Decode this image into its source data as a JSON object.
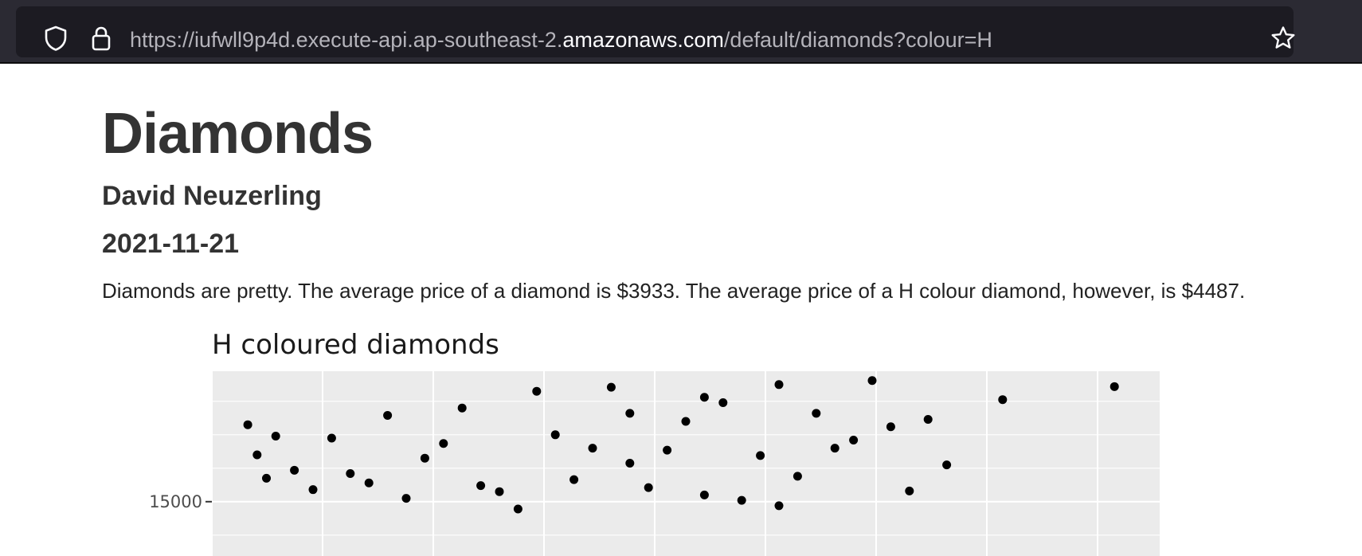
{
  "browser": {
    "url_prefix": "https://iufwll9p4d.execute-api.ap-southeast-2.",
    "url_host": "amazonaws.com",
    "url_suffix": "/default/diamonds?colour=H",
    "icons": [
      "shield-icon",
      "lock-icon",
      "star-icon"
    ]
  },
  "document": {
    "title": "Diamonds",
    "author": "David Neuzerling",
    "date": "2021-11-21",
    "paragraph": "Diamonds are pretty. The average price of a diamond is $3933. The average price of a H colour diamond, however, is $4487."
  },
  "chart_data": {
    "type": "scatter",
    "title": "H coloured diamonds",
    "xlabel": "",
    "ylabel": "",
    "y_ticks": [
      15000
    ],
    "y_tick_labels": [
      "15000"
    ],
    "ylim": [
      12900,
      18900
    ],
    "grid": true,
    "point_color": "#000000",
    "panel_color": "#ebebeb",
    "points": [
      [
        3.5,
        18620
      ],
      [
        4.8,
        18440
      ],
      [
        4.2,
        18050
      ],
      [
        2.2,
        17640
      ],
      [
        2.5,
        17400
      ],
      [
        0.3,
        16960
      ],
      [
        0.6,
        16900
      ],
      [
        2.0,
        16600
      ],
      [
        2.4,
        16540
      ],
      [
        2.9,
        16380
      ],
      [
        0.8,
        15560
      ],
      [
        1.4,
        15480
      ],
      [
        1.0,
        15100
      ],
      [
        1.9,
        15660
      ],
      [
        3.1,
        15760
      ],
      [
        0.5,
        15360
      ],
      [
        1.5,
        15300
      ],
      [
        2.6,
        15200
      ],
      [
        3.0,
        14880
      ],
      [
        2.8,
        15040
      ],
      [
        1.7,
        18300
      ],
      [
        2.1,
        18420
      ],
      [
        2.7,
        17960
      ],
      [
        3.2,
        17640
      ],
      [
        3.6,
        17240
      ],
      [
        3.8,
        17460
      ],
      [
        1.3,
        17800
      ],
      [
        0.9,
        17580
      ],
      [
        3.4,
        16840
      ],
      [
        3.9,
        16100
      ],
      [
        1.1,
        16300
      ],
      [
        0.7,
        15840
      ],
      [
        2.3,
        15420
      ],
      [
        3.3,
        16600
      ],
      [
        1.6,
        14780
      ],
      [
        2.6,
        18120
      ],
      [
        3.0,
        18500
      ],
      [
        1.8,
        17000
      ],
      [
        2.2,
        16150
      ],
      [
        3.7,
        15320
      ],
      [
        0.4,
        15940
      ],
      [
        1.2,
        16740
      ],
      [
        0.15,
        17300
      ],
      [
        0.2,
        16400
      ],
      [
        0.25,
        15700
      ]
    ]
  }
}
